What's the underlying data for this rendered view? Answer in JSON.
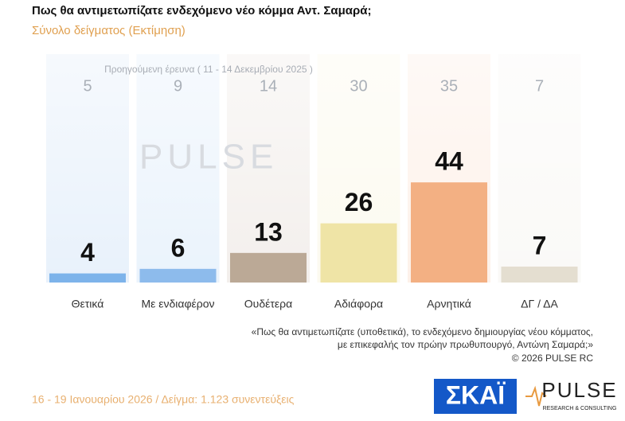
{
  "chart_data": {
    "type": "bar",
    "title": "Πως θα αντιμετωπίζατε ενδεχόμενο νέο κόμμα Αντ. Σαμαρά;",
    "subtitle": "Σύνολο δείγματος  (Εκτίμηση)",
    "categories": [
      "Θετικά",
      "Με ενδιαφέρον",
      "Ουδέτερα",
      "Αδιάφορα",
      "Αρνητικά",
      "ΔΓ / ΔΑ"
    ],
    "values": [
      4,
      6,
      13,
      26,
      44,
      7
    ],
    "colors": [
      "#7db3ea",
      "#8dbbec",
      "#bba996",
      "#efe4a6",
      "#f3b083",
      "#e4ded0"
    ],
    "previous": {
      "label": "Προηγούμενη έρευνα ( 11 - 14 Δεκεμβρίου 2025 )",
      "values": [
        5,
        9,
        14,
        30,
        35,
        7
      ]
    },
    "watermark": "PULSE",
    "question": [
      "«Πως θα αντιμετωπίζατε (υποθετικά), το ενδεχόμενο δημιουργίας νέου κόμματος,",
      "με επικεφαλής τον πρώην πρωθυπουργό, Αντώνη Σαμαρά;»",
      "©  2026  PULSE RC"
    ],
    "footer": "16 - 19 Ιανουαρίου 2026  /  Δείγμα:  1.123 συνεντεύξεις",
    "logos": {
      "broadcaster": "ΣΚΑΪ",
      "pollster": "PULSE",
      "pollster_tagline": "RESEARCH & CONSULTING"
    }
  }
}
